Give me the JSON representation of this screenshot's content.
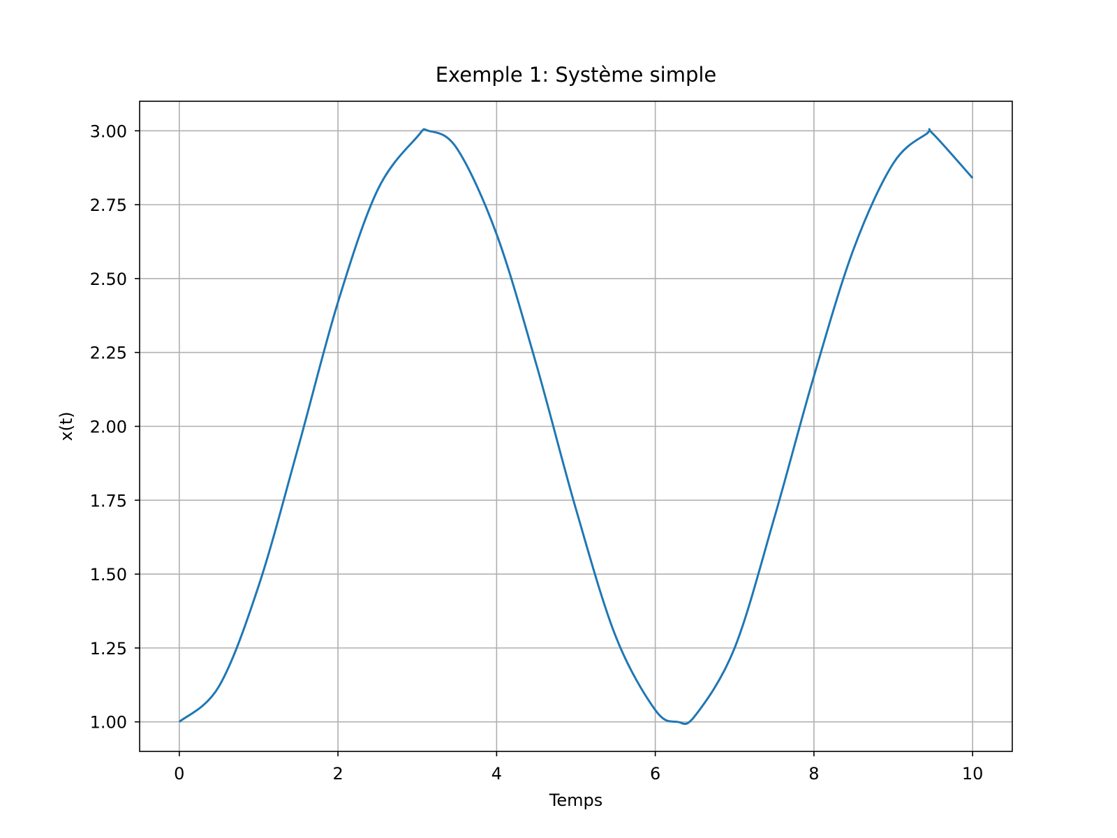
{
  "chart_data": {
    "type": "line",
    "title": "Exemple 1: Système simple",
    "xlabel": "Temps",
    "ylabel": "x(t)",
    "xlim": [
      -0.5,
      10.5
    ],
    "ylim": [
      0.9,
      3.1
    ],
    "xticks": [
      0,
      2,
      4,
      6,
      8,
      10
    ],
    "xtick_labels": [
      "0",
      "2",
      "4",
      "6",
      "8",
      "10"
    ],
    "yticks": [
      1.0,
      1.25,
      1.5,
      1.75,
      2.0,
      2.25,
      2.5,
      2.75,
      3.0
    ],
    "ytick_labels": [
      "1.00",
      "1.25",
      "1.50",
      "1.75",
      "2.00",
      "2.25",
      "2.50",
      "2.75",
      "3.00"
    ],
    "grid": true,
    "series": [
      {
        "color": "#1f77b4",
        "x": [
          0,
          0.5,
          1.0,
          1.5,
          2.0,
          2.5,
          3.0,
          3.14,
          3.5,
          4.0,
          4.5,
          5.0,
          5.5,
          6.0,
          6.28,
          6.5,
          7.0,
          7.5,
          8.0,
          8.5,
          9.0,
          9.42,
          9.5,
          10.0
        ],
        "y": [
          1.0,
          1.12,
          1.46,
          1.93,
          2.42,
          2.8,
          2.98,
          3.0,
          2.94,
          2.65,
          2.21,
          1.72,
          1.29,
          1.04,
          1.0,
          1.02,
          1.25,
          1.69,
          2.17,
          2.6,
          2.89,
          2.99,
          2.99,
          2.84
        ]
      }
    ]
  }
}
